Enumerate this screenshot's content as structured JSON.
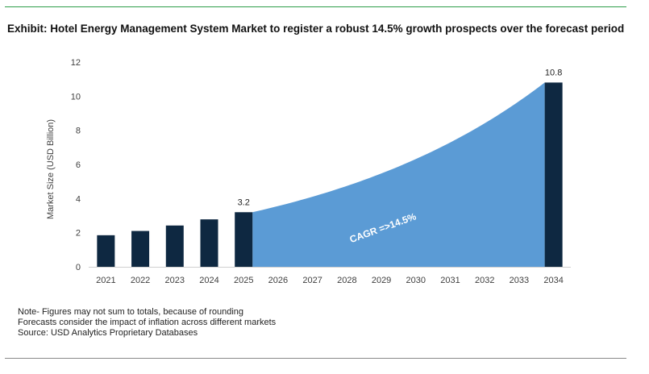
{
  "title": "Exhibit: Hotel Energy Management System Market to register a robust 14.5% growth prospects over the forecast period",
  "colors": {
    "bar": "#0e2841",
    "area": "#5b9bd5",
    "rule_top": "#2e9e48",
    "rule_bottom": "#8a8a8a"
  },
  "chart_data": {
    "type": "bar",
    "ylabel": "Market Size (USD Billion)",
    "xlabel": "",
    "ylim": [
      0,
      12
    ],
    "yticks": [
      0,
      2,
      4,
      6,
      8,
      10,
      12
    ],
    "categories": [
      "2021",
      "2022",
      "2023",
      "2024",
      "2025",
      "2026",
      "2027",
      "2028",
      "2029",
      "2030",
      "2031",
      "2032",
      "2033",
      "2034"
    ],
    "series": [
      {
        "values": [
          1.85,
          2.1,
          2.42,
          2.78,
          3.2,
          null,
          null,
          null,
          null,
          null,
          null,
          null,
          null,
          10.8
        ]
      }
    ],
    "area": {
      "from": "2025",
      "to": "2034",
      "start": 3.2,
      "end": 10.8,
      "label": "CAGR =>14.5%"
    },
    "data_labels": [
      {
        "category": "2025",
        "text": "3.2"
      },
      {
        "category": "2034",
        "text": "10.8"
      }
    ],
    "grid": false,
    "legend": "none"
  },
  "notes": [
    "Note- Figures may not sum to totals, because of rounding",
    "Forecasts consider the impact of inflation across different markets",
    "Source: USD Analytics Proprietary Databases"
  ]
}
